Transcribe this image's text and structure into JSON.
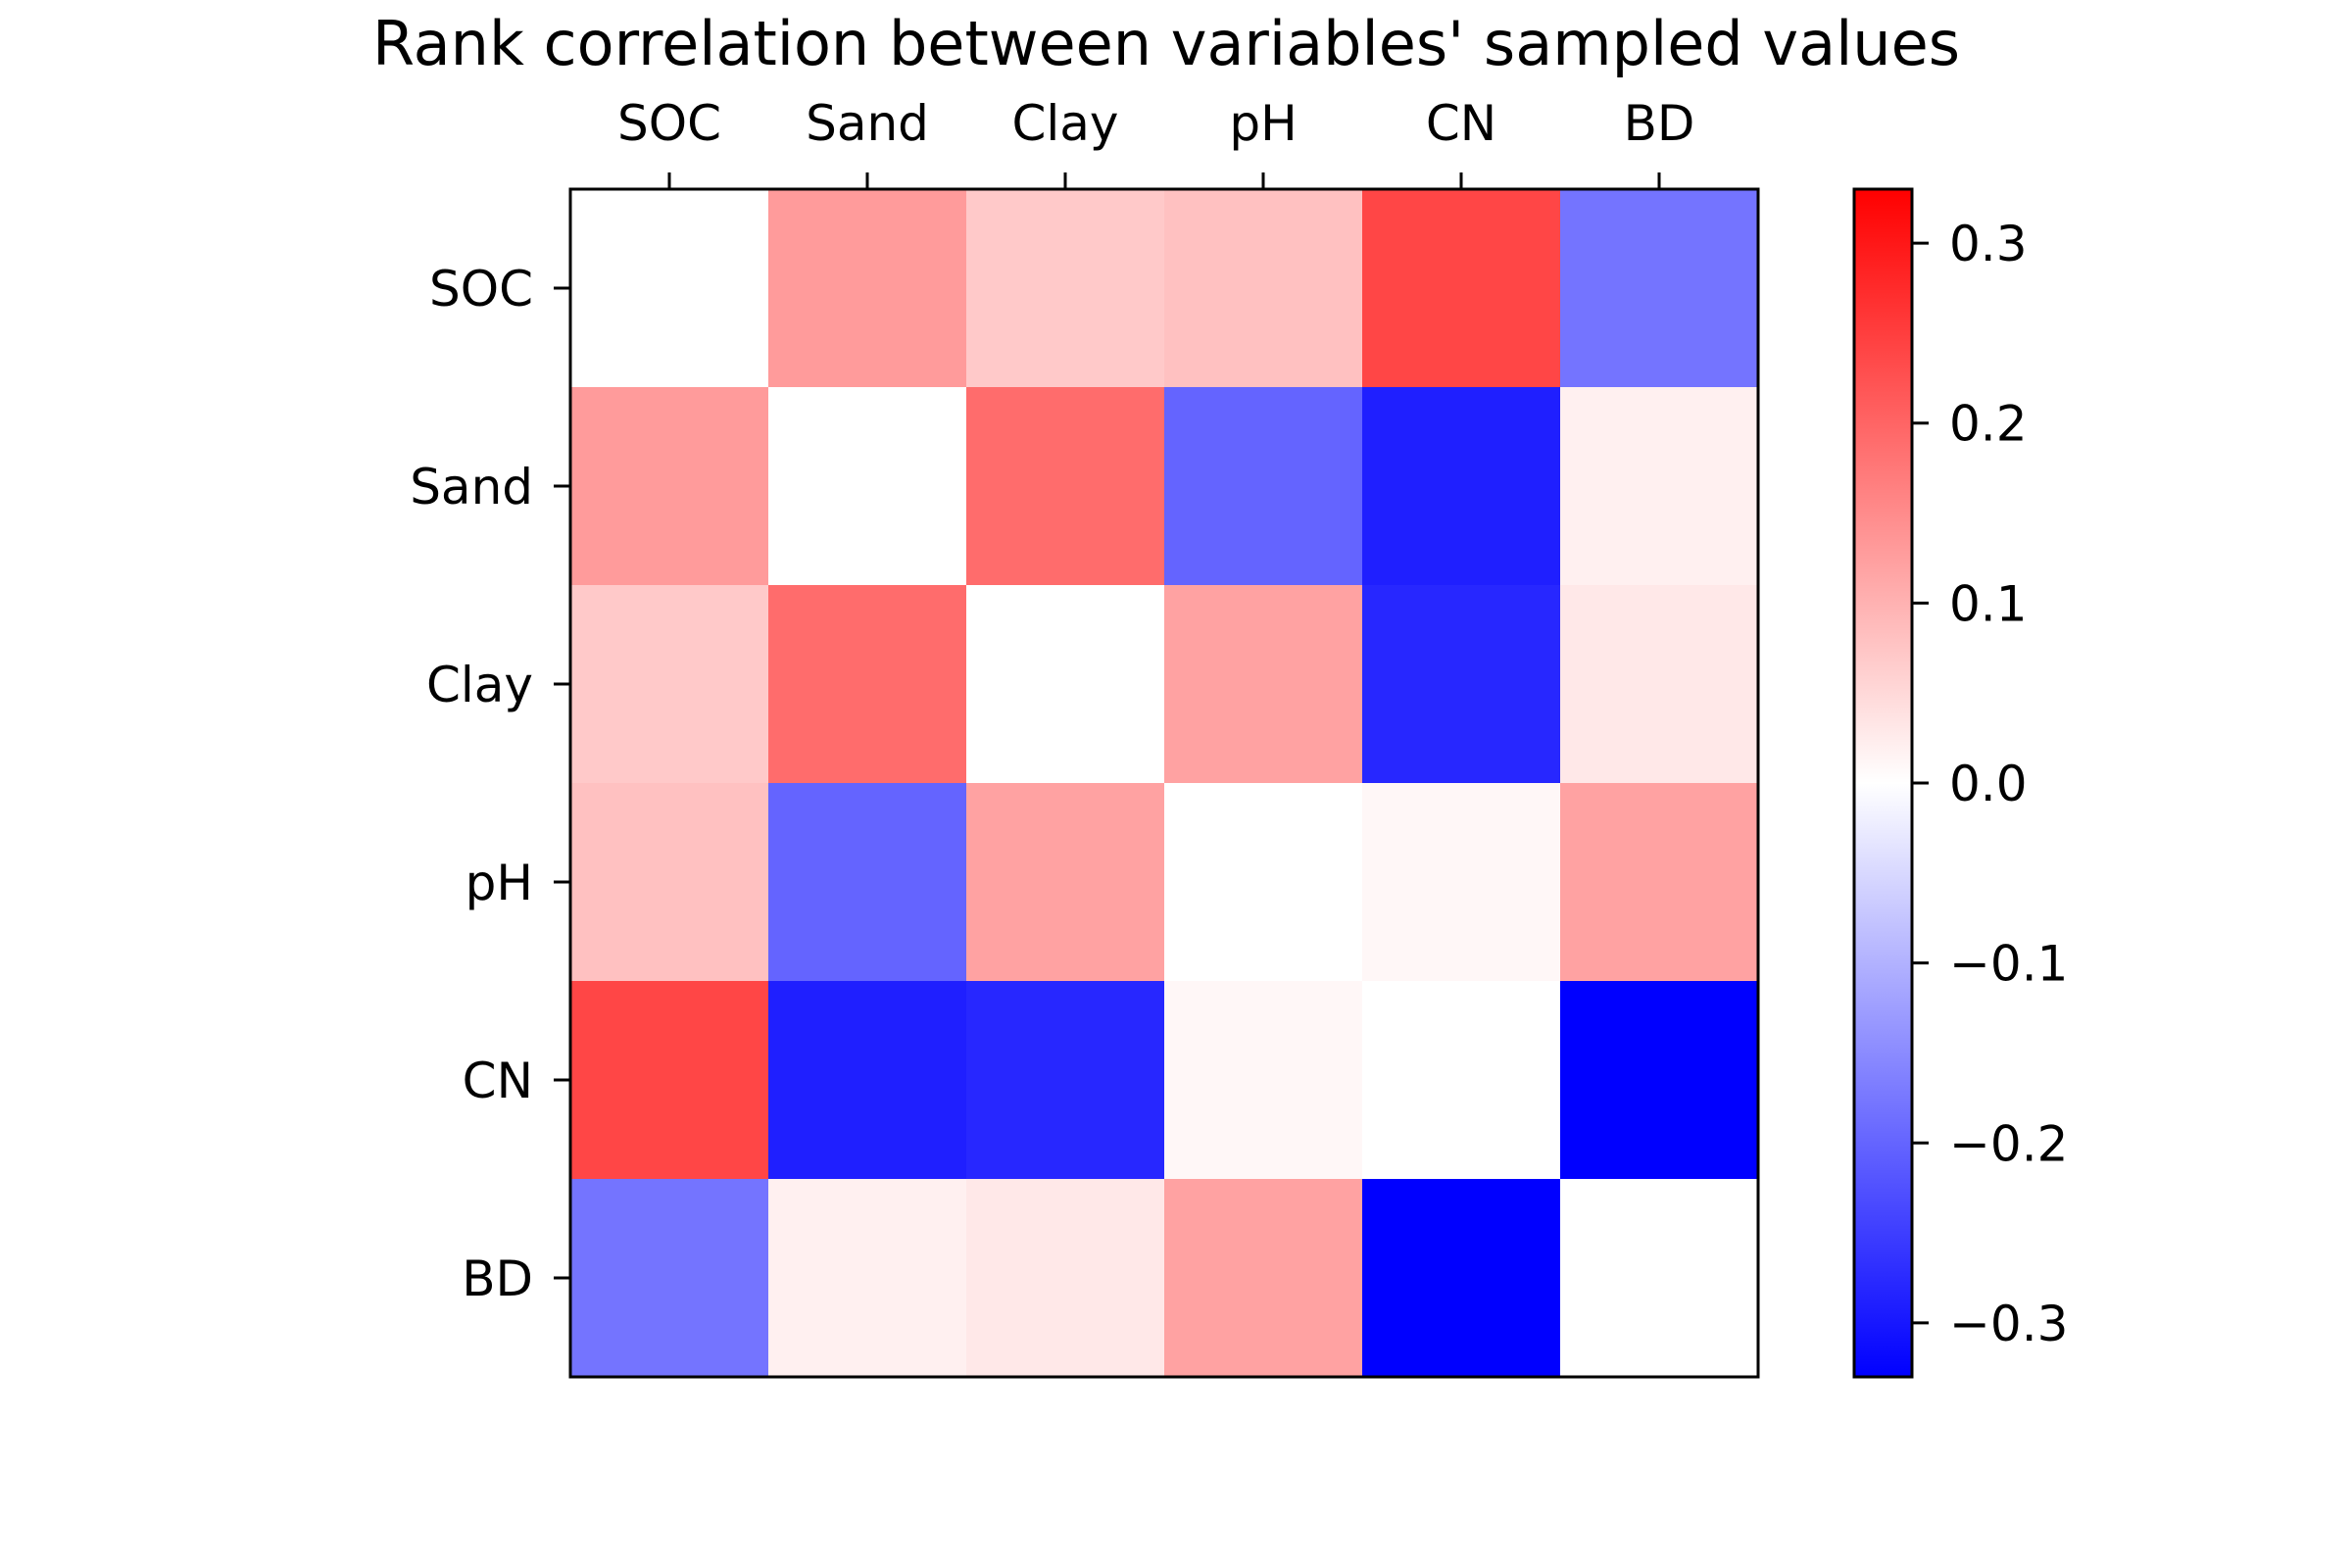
{
  "chart_data": {
    "type": "heatmap",
    "title": "Rank correlation between variables' sampled values",
    "x_categories": [
      "SOC",
      "Sand",
      "Clay",
      "pH",
      "CN",
      "BD"
    ],
    "y_categories": [
      "SOC",
      "Sand",
      "Clay",
      "pH",
      "CN",
      "BD"
    ],
    "x_tick_position": "top",
    "values": [
      [
        0.0,
        0.13,
        0.07,
        0.08,
        0.24,
        -0.18
      ],
      [
        0.13,
        0.0,
        0.19,
        -0.2,
        -0.29,
        0.02
      ],
      [
        0.07,
        0.19,
        0.0,
        0.12,
        -0.28,
        0.03
      ],
      [
        0.08,
        -0.2,
        0.12,
        0.0,
        0.01,
        0.12
      ],
      [
        0.24,
        -0.29,
        -0.28,
        0.01,
        0.0,
        -0.33
      ],
      [
        -0.18,
        0.02,
        0.03,
        0.12,
        -0.33,
        0.0
      ]
    ],
    "colormap": {
      "name": "bwr",
      "low_color": "#0000ff",
      "mid_color": "#ffffff",
      "high_color": "#ff0000"
    },
    "value_range": [
      -0.33,
      0.33
    ],
    "colorbar": {
      "ticks": [
        0.3,
        0.2,
        0.1,
        0.0,
        -0.1,
        -0.2,
        -0.3
      ],
      "tick_labels": [
        "0.3",
        "0.2",
        "0.1",
        "0.0",
        "−0.1",
        "−0.2",
        "−0.3"
      ]
    },
    "grid": false
  }
}
